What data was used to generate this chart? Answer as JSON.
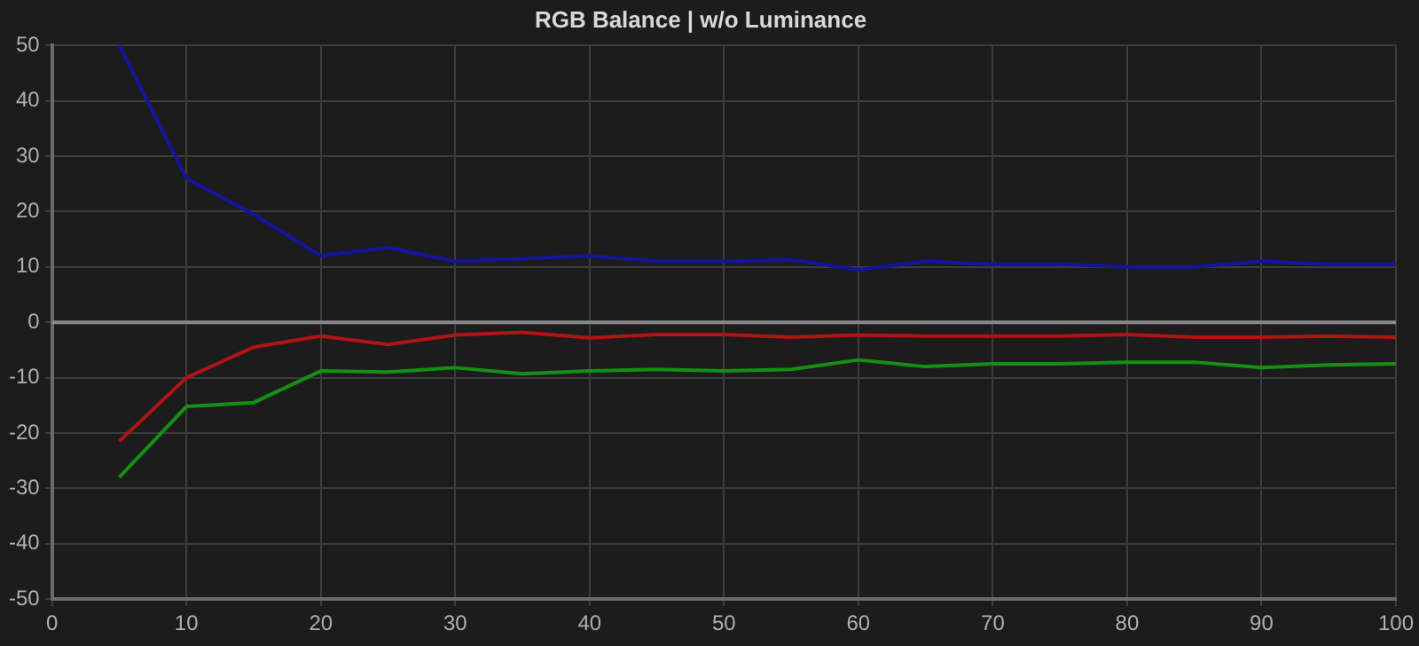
{
  "chart_data": {
    "type": "line",
    "title": "RGB Balance | w/o Luminance",
    "x": [
      5,
      10,
      15,
      20,
      25,
      30,
      35,
      40,
      45,
      50,
      55,
      60,
      65,
      70,
      75,
      80,
      85,
      90,
      95,
      100
    ],
    "series": [
      {
        "color": "#1414a0",
        "values": [
          50,
          26,
          19.5,
          12,
          13.5,
          11,
          11.5,
          12,
          11,
          11,
          11.3,
          9.5,
          11,
          10.5,
          10.5,
          10,
          10,
          11,
          10.5,
          10.5
        ]
      },
      {
        "color": "#b01414",
        "values": [
          -21.5,
          -10,
          -4.5,
          -2.5,
          -4,
          -2.3,
          -1.8,
          -2.8,
          -2.2,
          -2.2,
          -2.7,
          -2.3,
          -2.5,
          -2.5,
          -2.5,
          -2.2,
          -2.7,
          -2.7,
          -2.5,
          -2.7
        ]
      },
      {
        "color": "#149014",
        "values": [
          -28,
          -15.2,
          -14.5,
          -8.8,
          -9,
          -8.2,
          -9.3,
          -8.8,
          -8.5,
          -8.8,
          -8.5,
          -6.8,
          -8,
          -7.5,
          -7.5,
          -7.2,
          -7.2,
          -8.2,
          -7.7,
          -7.5
        ]
      }
    ],
    "xlim": [
      0,
      100
    ],
    "xticks": [
      0,
      10,
      20,
      30,
      40,
      50,
      60,
      70,
      80,
      90,
      100
    ],
    "ylim": [
      -50,
      50
    ],
    "yticks": [
      -50,
      -40,
      -30,
      -20,
      -10,
      0,
      10,
      20,
      30,
      40,
      50
    ],
    "grid": true,
    "ref_lines": [
      {
        "axis": "y",
        "value": 0,
        "color": "#8a8a8a"
      }
    ]
  }
}
